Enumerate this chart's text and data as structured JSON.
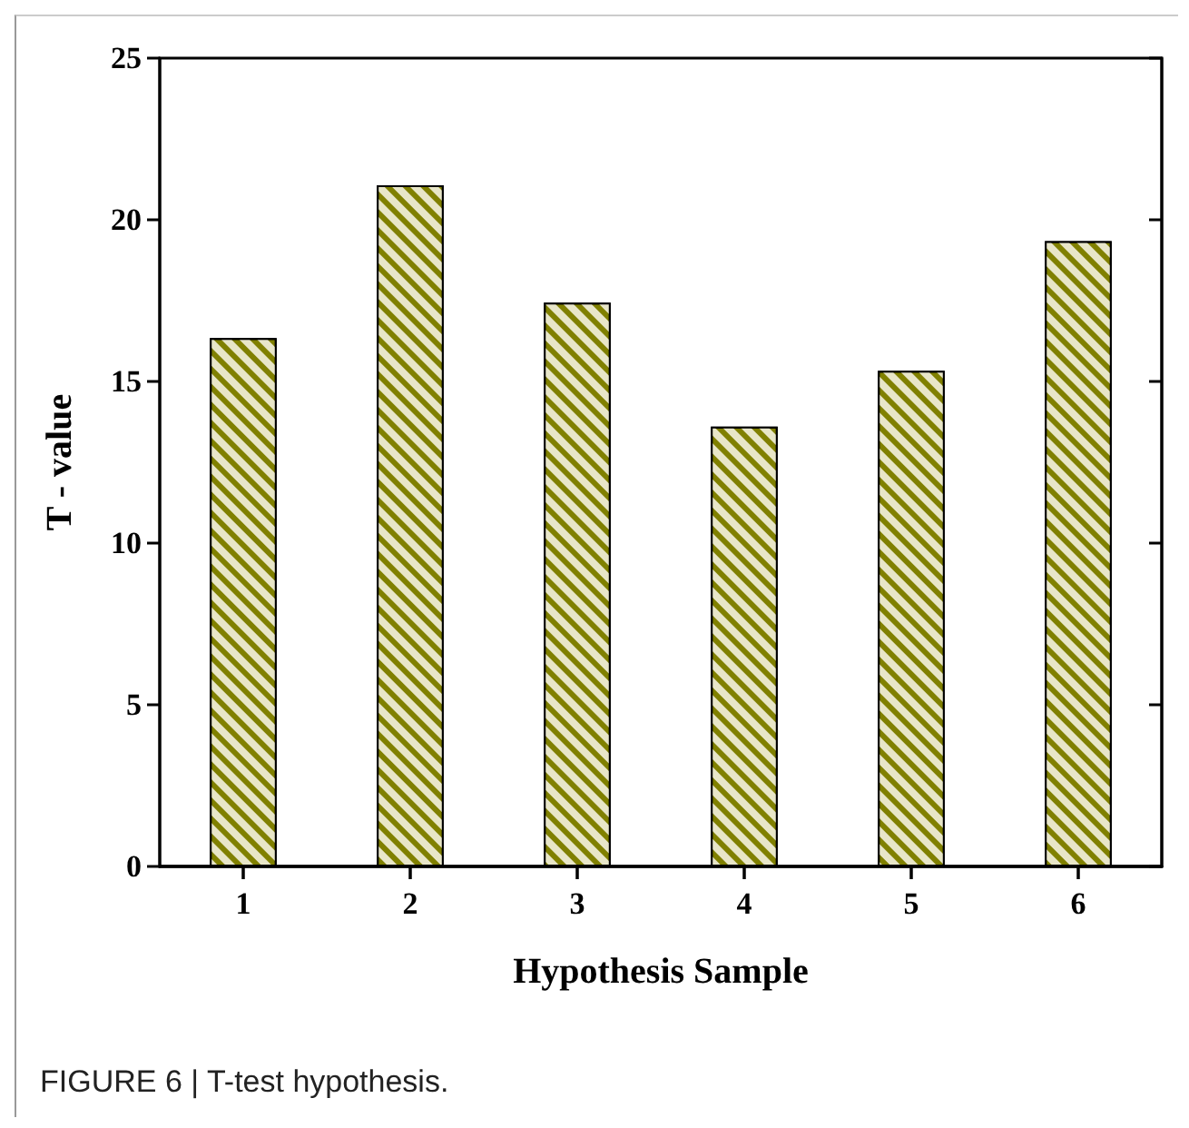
{
  "chart_data": {
    "type": "bar",
    "categories": [
      "1",
      "2",
      "3",
      "4",
      "5",
      "6"
    ],
    "values": [
      16.34,
      21.07,
      17.44,
      13.6,
      15.33,
      19.34
    ],
    "color": "#808000",
    "xlabel": "Hypothesis Sample",
    "ylabel": "T - value",
    "ylim": [
      0,
      25
    ],
    "yticks": [
      0,
      5,
      10,
      15,
      20,
      25
    ],
    "grid": false,
    "annotations": [
      "FIGURE 6 | T-test hypothesis."
    ]
  }
}
